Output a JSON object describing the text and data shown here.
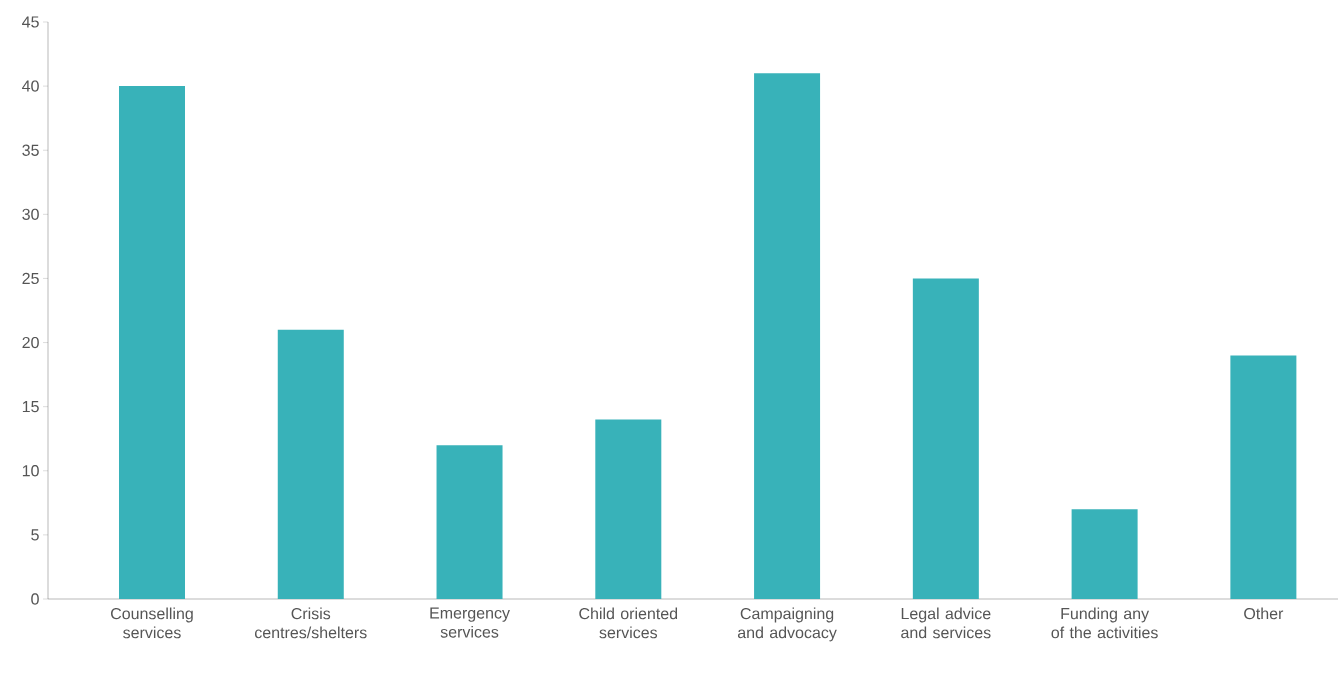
{
  "chart_data": {
    "type": "bar",
    "categories": [
      "Counselling services",
      "Crisis centres/shelters",
      "Emergency services",
      "Child oriented services",
      "Campaigning and advocacy",
      "Legal advice and services",
      "Funding any of the activities",
      "Other"
    ],
    "values": [
      40,
      21,
      12,
      14,
      41,
      25,
      7,
      19
    ],
    "color": "#38b2b9",
    "ylim": [
      0,
      45
    ],
    "yticks": [
      0,
      5,
      10,
      15,
      20,
      25,
      30,
      35,
      40,
      45
    ]
  }
}
